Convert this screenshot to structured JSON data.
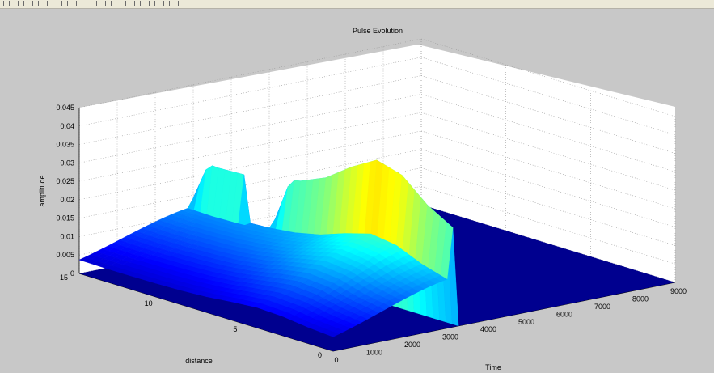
{
  "toolbar": {
    "icons": [
      "new-figure-icon",
      "open-file-icon",
      "save-icon",
      "print-icon",
      "select-arrow-icon",
      "zoom-in-icon",
      "zoom-out-icon",
      "pan-icon",
      "rotate-3d-icon",
      "data-cursor-icon",
      "colorbar-icon",
      "legend-icon",
      "hide-plot-tools-icon"
    ]
  },
  "chart_data": {
    "type": "surface",
    "title": "Pulse Evolution",
    "xlabel": "Time",
    "ylabel": "distance",
    "zlabel": "amplitude",
    "xlim": [
      0,
      9000
    ],
    "ylim": [
      0,
      15
    ],
    "zlim": [
      0,
      0.045
    ],
    "x_ticks": [
      "0",
      "1000",
      "2000",
      "3000",
      "4000",
      "5000",
      "6000",
      "7000",
      "8000",
      "9000"
    ],
    "y_ticks": [
      "0",
      "5",
      "10",
      "15"
    ],
    "z_ticks": [
      "0",
      "0.005",
      "0.01",
      "0.015",
      "0.02",
      "0.025",
      "0.03",
      "0.035",
      "0.04",
      "0.045"
    ],
    "colormap": "jet",
    "grid": true,
    "surface_profile": {
      "distance": [
        0,
        1.5,
        3,
        4.5,
        6,
        7.5,
        9,
        10.5,
        12,
        13.5,
        15
      ],
      "pulse_center_time": [
        3100,
        3150,
        3150,
        3150,
        3150,
        3150,
        3100,
        3050,
        3000,
        2950,
        2900
      ],
      "peak_amplitude": [
        0.027,
        0.031,
        0.037,
        0.039,
        0.035,
        0.03,
        0.027,
        0.0255,
        0.0248,
        0.0245,
        0.025
      ]
    }
  }
}
